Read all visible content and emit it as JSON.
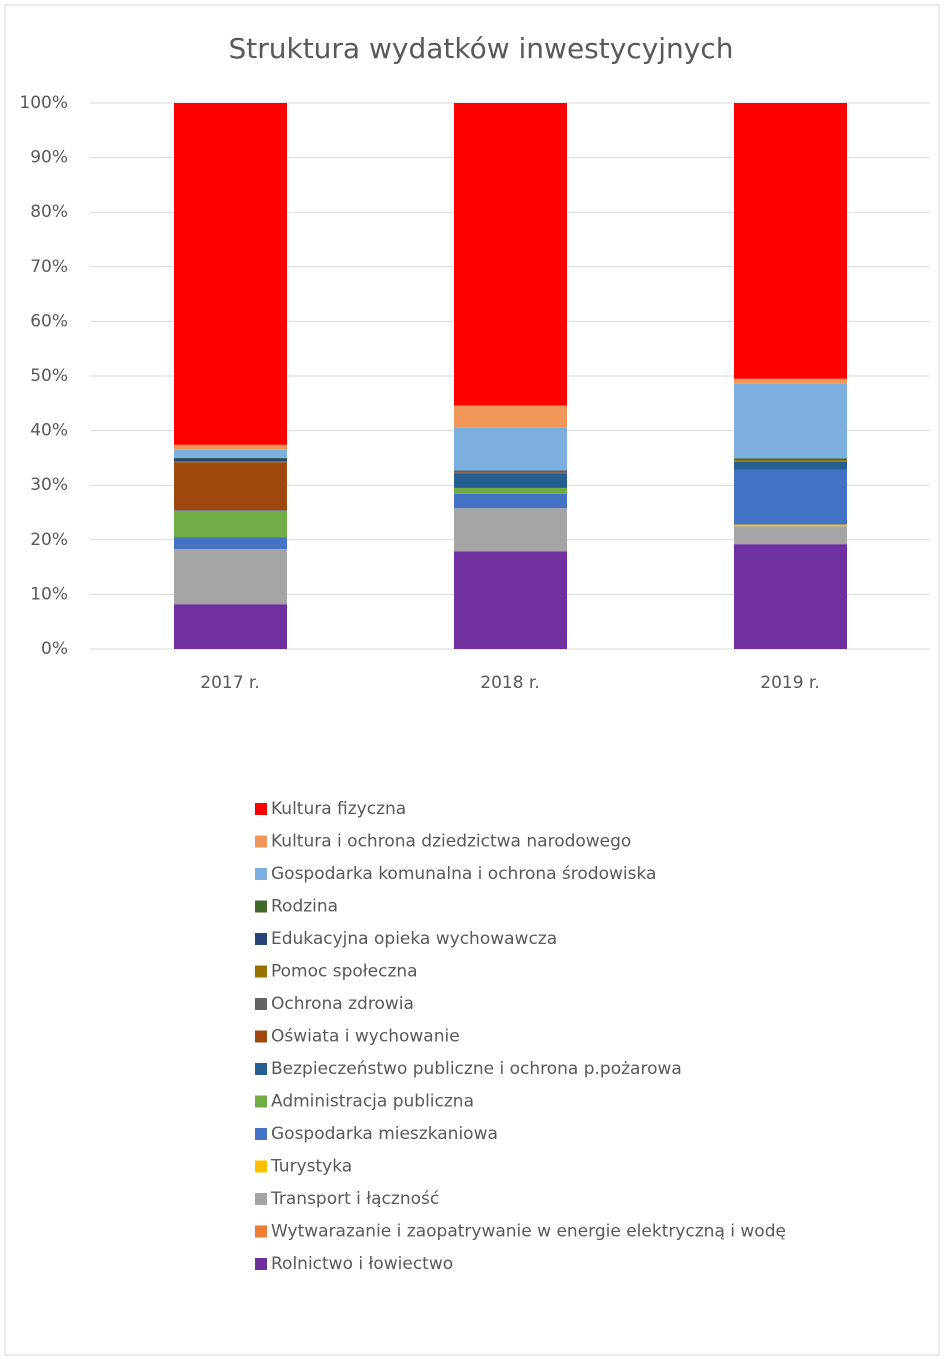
{
  "chart_data": {
    "type": "stacked_bar_100",
    "title": "Struktura wydatków inwestycyjnych",
    "categories": [
      "2017 r.",
      "2018 r.",
      "2019 r."
    ],
    "ylim": [
      0,
      100
    ],
    "yticks": [
      {
        "value": 0,
        "label": "0%"
      },
      {
        "value": 10,
        "label": "10%"
      },
      {
        "value": 20,
        "label": "20%"
      },
      {
        "value": 30,
        "label": "30%"
      },
      {
        "value": 40,
        "label": "40%"
      },
      {
        "value": 50,
        "label": "50%"
      },
      {
        "value": 60,
        "label": "60%"
      },
      {
        "value": 70,
        "label": "70%"
      },
      {
        "value": 80,
        "label": "80%"
      },
      {
        "value": 90,
        "label": "90%"
      },
      {
        "value": 100,
        "label": "100%"
      }
    ],
    "grid": true,
    "legend": "bottom",
    "series": [
      {
        "name": "Rolnictwo i łowiectwo",
        "color": "#7030a0",
        "values": [
          8.2,
          17.9,
          19.2
        ]
      },
      {
        "name": "Wytwarazanie i zaopatrywanie w energie elektryczną i wodę",
        "color": "#ed7d31",
        "values": [
          0,
          0,
          0
        ]
      },
      {
        "name": "Transport i łączność",
        "color": "#a5a5a5",
        "values": [
          10.1,
          7.9,
          3.3
        ]
      },
      {
        "name": "Turystyka",
        "color": "#ffc000",
        "values": [
          0,
          0,
          0.3
        ]
      },
      {
        "name": "Gospodarka mieszkaniowa",
        "color": "#4472c4",
        "values": [
          2.2,
          2.6,
          10.0
        ]
      },
      {
        "name": "Administracja publiczna",
        "color": "#70ad47",
        "values": [
          4.8,
          1.1,
          0
        ]
      },
      {
        "name": "Bezpieczeństwo publiczne i ochrona p.pożarowa",
        "color": "#255e91",
        "values": [
          0.1,
          2.7,
          1.5
        ]
      },
      {
        "name": "Oświata i wychowanie",
        "color": "#9e480e",
        "values": [
          8.8,
          0.1,
          0
        ]
      },
      {
        "name": "Ochrona zdrowia",
        "color": "#636363",
        "values": [
          0.2,
          0.4,
          0
        ]
      },
      {
        "name": "Pomoc społeczna",
        "color": "#997300",
        "values": [
          0,
          0,
          0.3
        ]
      },
      {
        "name": "Edukacyjna opieka wychowawcza",
        "color": "#264478",
        "values": [
          0.5,
          0,
          0
        ]
      },
      {
        "name": "Rodzina",
        "color": "#43682b",
        "values": [
          0.1,
          0,
          0.3
        ]
      },
      {
        "name": "Gospodarka komunalna i ochrona środowiska",
        "color": "#7cafdd",
        "values": [
          1.5,
          7.9,
          13.7
        ]
      },
      {
        "name": "Kultura i ochrona dziedzictwa narodowego",
        "color": "#f1975a",
        "values": [
          0.9,
          4.0,
          0.9
        ]
      },
      {
        "name": "Kultura fizyczna",
        "color": "#ff0000",
        "values": [
          62.6,
          55.4,
          50.5
        ]
      }
    ]
  }
}
